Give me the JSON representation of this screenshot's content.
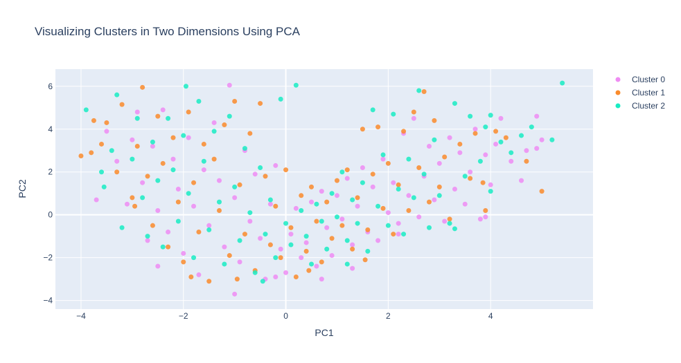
{
  "chart_data": {
    "type": "scatter",
    "title": "Visualizing Clusters in Two Dimensions Using PCA",
    "xlabel": "PC1",
    "ylabel": "PC2",
    "xlim": [
      -4.5,
      6.0
    ],
    "ylim": [
      -4.4,
      6.8
    ],
    "x_ticks": [
      -4,
      -2,
      0,
      2,
      4
    ],
    "y_ticks": [
      -4,
      -2,
      0,
      2,
      4,
      6
    ],
    "x_tick_labels": [
      "−4",
      "−2",
      "0",
      "2",
      "4"
    ],
    "y_tick_labels": [
      "−4",
      "−2",
      "0",
      "2",
      "4",
      "6"
    ],
    "grid": true,
    "legend_position": "top-right",
    "plot_bgcolor": "#e5ecf6",
    "series": [
      {
        "name": "Cluster 0",
        "color": "#ef8cf3",
        "points": [
          [
            -3.5,
            3.9
          ],
          [
            -3.3,
            2.5
          ],
          [
            -3.1,
            0.5
          ],
          [
            -3.0,
            3.5
          ],
          [
            -2.9,
            4.8
          ],
          [
            -2.8,
            1.5
          ],
          [
            -2.7,
            -1.2
          ],
          [
            -2.6,
            3.2
          ],
          [
            -2.5,
            0.2
          ],
          [
            -2.4,
            4.9
          ],
          [
            -2.3,
            -0.8
          ],
          [
            -2.2,
            2.6
          ],
          [
            -2.1,
            1.2
          ],
          [
            -2.0,
            -1.8
          ],
          [
            -1.9,
            3.6
          ],
          [
            -1.8,
            0.4
          ],
          [
            -1.7,
            -2.8
          ],
          [
            -1.6,
            2.1
          ],
          [
            -1.5,
            -0.5
          ],
          [
            -1.4,
            4.3
          ],
          [
            -1.3,
            1.6
          ],
          [
            -1.2,
            -1.5
          ],
          [
            -1.1,
            6.05
          ],
          [
            -1.0,
            0.8
          ],
          [
            -0.9,
            -2.2
          ],
          [
            -0.8,
            3.0
          ],
          [
            -0.7,
            -0.3
          ],
          [
            -0.6,
            1.9
          ],
          [
            -0.5,
            -1.1
          ],
          [
            -0.4,
            -3.0
          ],
          [
            -0.3,
            0.5
          ],
          [
            -0.2,
            2.3
          ],
          [
            -0.1,
            -1.6
          ],
          [
            0.0,
            -2.7
          ],
          [
            0.1,
            -0.9
          ],
          [
            0.2,
            0.3
          ],
          [
            0.3,
            -2.0
          ],
          [
            0.4,
            -1.3
          ],
          [
            0.5,
            0.6
          ],
          [
            0.6,
            -2.4
          ],
          [
            0.7,
            1.1
          ],
          [
            0.8,
            -0.6
          ],
          [
            0.9,
            -1.9
          ],
          [
            1.0,
            0.9
          ],
          [
            1.1,
            -0.2
          ],
          [
            1.2,
            1.7
          ],
          [
            1.3,
            -1.4
          ],
          [
            1.4,
            0.4
          ],
          [
            1.5,
            2.2
          ],
          [
            1.6,
            -0.8
          ],
          [
            1.7,
            1.3
          ],
          [
            1.8,
            -1.2
          ],
          [
            1.9,
            2.6
          ],
          [
            2.0,
            0.1
          ],
          [
            2.1,
            1.5
          ],
          [
            2.2,
            -0.4
          ],
          [
            2.3,
            3.8
          ],
          [
            2.4,
            0.9
          ],
          [
            2.5,
            4.5
          ],
          [
            2.6,
            -0.1
          ],
          [
            2.7,
            1.8
          ],
          [
            2.8,
            3.2
          ],
          [
            2.9,
            0.7
          ],
          [
            3.0,
            2.4
          ],
          [
            3.1,
            -0.3
          ],
          [
            3.2,
            3.6
          ],
          [
            3.3,
            1.2
          ],
          [
            3.4,
            2.9
          ],
          [
            3.5,
            0.5
          ],
          [
            3.6,
            2.0
          ],
          [
            3.7,
            4.0
          ],
          [
            3.8,
            -0.2
          ],
          [
            3.9,
            2.8
          ],
          [
            4.0,
            1.4
          ],
          [
            4.1,
            3.3
          ],
          [
            4.2,
            4.5
          ],
          [
            4.4,
            2.5
          ],
          [
            4.6,
            1.6
          ],
          [
            4.7,
            3.0
          ],
          [
            4.9,
            4.6
          ],
          [
            5.0,
            3.5
          ],
          [
            -1.0,
            -3.7
          ],
          [
            1.3,
            -2.5
          ],
          [
            -2.5,
            -2.4
          ],
          [
            0.7,
            -3.0
          ],
          [
            3.9,
            -0.1
          ],
          [
            4.9,
            3.1
          ],
          [
            -3.7,
            0.7
          ],
          [
            -0.2,
            -2.9
          ],
          [
            2.2,
            -0.9
          ]
        ]
      },
      {
        "name": "Cluster 1",
        "color": "#fa8b2c",
        "points": [
          [
            -4.0,
            2.75
          ],
          [
            -3.8,
            2.9
          ],
          [
            -3.75,
            4.4
          ],
          [
            -3.5,
            4.3
          ],
          [
            -3.3,
            2.0
          ],
          [
            -3.2,
            5.15
          ],
          [
            -3.0,
            0.8
          ],
          [
            -2.9,
            3.2
          ],
          [
            -2.8,
            5.95
          ],
          [
            -2.7,
            1.8
          ],
          [
            -2.6,
            -0.5
          ],
          [
            -2.5,
            4.6
          ],
          [
            -2.4,
            2.4
          ],
          [
            -2.3,
            -1.5
          ],
          [
            -2.2,
            3.6
          ],
          [
            -2.1,
            0.6
          ],
          [
            -2.0,
            -2.2
          ],
          [
            -1.9,
            4.8
          ],
          [
            -1.8,
            1.5
          ],
          [
            -1.7,
            -0.8
          ],
          [
            -1.6,
            3.3
          ],
          [
            -1.5,
            -3.1
          ],
          [
            -1.4,
            2.6
          ],
          [
            -1.3,
            0.2
          ],
          [
            -1.2,
            4.2
          ],
          [
            -1.1,
            -1.9
          ],
          [
            -1.0,
            5.3
          ],
          [
            -0.9,
            1.4
          ],
          [
            -0.8,
            -0.9
          ],
          [
            -0.7,
            3.8
          ],
          [
            -0.6,
            -2.6
          ],
          [
            -0.5,
            5.2
          ],
          [
            -0.4,
            1.8
          ],
          [
            -0.3,
            -1.4
          ],
          [
            -0.2,
            0.4
          ],
          [
            -0.1,
            -2.0
          ],
          [
            0.0,
            2.1
          ],
          [
            0.1,
            -0.6
          ],
          [
            0.2,
            -2.9
          ],
          [
            0.3,
            0.9
          ],
          [
            0.4,
            -1.7
          ],
          [
            0.5,
            1.3
          ],
          [
            0.6,
            -0.3
          ],
          [
            0.7,
            -2.2
          ],
          [
            0.8,
            0.6
          ],
          [
            0.9,
            -1.1
          ],
          [
            1.0,
            1.6
          ],
          [
            1.1,
            -0.5
          ],
          [
            1.2,
            2.1
          ],
          [
            1.3,
            -1.6
          ],
          [
            1.4,
            0.8
          ],
          [
            1.5,
            4.0
          ],
          [
            1.6,
            -0.7
          ],
          [
            1.7,
            1.9
          ],
          [
            1.8,
            4.1
          ],
          [
            1.9,
            0.3
          ],
          [
            2.0,
            2.4
          ],
          [
            2.1,
            -0.9
          ],
          [
            2.2,
            1.4
          ],
          [
            2.3,
            3.9
          ],
          [
            2.4,
            0.2
          ],
          [
            2.5,
            4.8
          ],
          [
            2.6,
            2.2
          ],
          [
            2.7,
            5.75
          ],
          [
            2.8,
            0.6
          ],
          [
            2.9,
            4.4
          ],
          [
            3.0,
            1.3
          ],
          [
            3.1,
            2.7
          ],
          [
            3.2,
            -0.2
          ],
          [
            3.4,
            3.3
          ],
          [
            3.6,
            1.7
          ],
          [
            3.7,
            3.8
          ],
          [
            3.9,
            0.2
          ],
          [
            4.1,
            3.9
          ],
          [
            4.3,
            3.6
          ],
          [
            4.7,
            2.5
          ],
          [
            5.0,
            1.1
          ],
          [
            -3.6,
            3.3
          ],
          [
            -2.95,
            0.4
          ],
          [
            -1.85,
            -2.9
          ],
          [
            -0.95,
            -3.0
          ],
          [
            0.45,
            -2.6
          ],
          [
            1.55,
            -2.1
          ],
          [
            3.85,
            1.5
          ]
        ]
      },
      {
        "name": "Cluster 2",
        "color": "#19ecc3",
        "points": [
          [
            -3.9,
            4.9
          ],
          [
            -3.6,
            2.0
          ],
          [
            -3.4,
            3.0
          ],
          [
            -3.3,
            5.6
          ],
          [
            -3.2,
            -0.6
          ],
          [
            -3.0,
            2.6
          ],
          [
            -2.9,
            4.5
          ],
          [
            -2.8,
            0.8
          ],
          [
            -2.7,
            -1.0
          ],
          [
            -2.6,
            3.4
          ],
          [
            -2.5,
            1.6
          ],
          [
            -2.4,
            -1.5
          ],
          [
            -2.3,
            4.5
          ],
          [
            -2.2,
            2.1
          ],
          [
            -2.1,
            -0.3
          ],
          [
            -2.0,
            3.7
          ],
          [
            -1.95,
            6.0
          ],
          [
            -1.9,
            1.0
          ],
          [
            -1.8,
            -2.0
          ],
          [
            -1.7,
            5.3
          ],
          [
            -1.6,
            2.5
          ],
          [
            -1.5,
            -0.7
          ],
          [
            -1.4,
            3.9
          ],
          [
            -1.3,
            0.6
          ],
          [
            -1.2,
            -2.3
          ],
          [
            -1.1,
            4.6
          ],
          [
            -1.0,
            1.3
          ],
          [
            -0.9,
            -1.2
          ],
          [
            -0.8,
            3.1
          ],
          [
            -0.7,
            0.1
          ],
          [
            -0.6,
            -2.7
          ],
          [
            -0.5,
            2.2
          ],
          [
            -0.4,
            -0.9
          ],
          [
            -0.3,
            0.7
          ],
          [
            -0.2,
            -2.0
          ],
          [
            -0.1,
            5.4
          ],
          [
            0.0,
            -0.4
          ],
          [
            0.1,
            -1.4
          ],
          [
            0.2,
            6.05
          ],
          [
            0.3,
            0.2
          ],
          [
            0.4,
            -1.0
          ],
          [
            0.5,
            -2.3
          ],
          [
            0.6,
            0.5
          ],
          [
            0.7,
            -0.3
          ],
          [
            0.8,
            -1.6
          ],
          [
            0.9,
            1.0
          ],
          [
            1.0,
            -0.1
          ],
          [
            1.1,
            2.0
          ],
          [
            1.2,
            -1.2
          ],
          [
            1.3,
            0.7
          ],
          [
            1.4,
            -0.4
          ],
          [
            1.5,
            1.5
          ],
          [
            1.6,
            -1.7
          ],
          [
            1.7,
            4.9
          ],
          [
            1.8,
            0.4
          ],
          [
            1.9,
            2.8
          ],
          [
            2.0,
            -0.5
          ],
          [
            2.1,
            4.7
          ],
          [
            2.2,
            1.2
          ],
          [
            2.3,
            -0.9
          ],
          [
            2.4,
            2.6
          ],
          [
            2.5,
            0.8
          ],
          [
            2.6,
            5.8
          ],
          [
            2.7,
            1.9
          ],
          [
            2.8,
            -0.6
          ],
          [
            2.9,
            3.5
          ],
          [
            3.0,
            0.9
          ],
          [
            3.2,
            -0.4
          ],
          [
            3.3,
            5.2
          ],
          [
            3.5,
            1.8
          ],
          [
            3.6,
            4.6
          ],
          [
            3.8,
            2.5
          ],
          [
            3.9,
            4.1
          ],
          [
            4.0,
            1.1
          ],
          [
            4.2,
            3.4
          ],
          [
            4.4,
            2.9
          ],
          [
            4.6,
            3.7
          ],
          [
            4.8,
            4.1
          ],
          [
            5.2,
            3.5
          ],
          [
            5.4,
            6.15
          ],
          [
            4.0,
            4.65
          ],
          [
            3.3,
            -0.65
          ],
          [
            -3.55,
            1.3
          ],
          [
            -0.45,
            -3.1
          ],
          [
            1.2,
            -2.3
          ]
        ]
      }
    ]
  }
}
